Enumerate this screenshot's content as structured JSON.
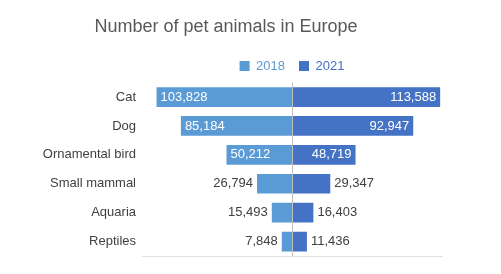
{
  "chart_data": {
    "type": "bar",
    "title": "Number of pet animals in Europe",
    "orientation": "horizontal",
    "categories": [
      "Cat",
      "Dog",
      "Ornamental bird",
      "Small mammal",
      "Aquaria",
      "Reptiles"
    ],
    "series": [
      {
        "name": "2018",
        "color": "#5b9bd5",
        "values": [
          103828,
          85184,
          50212,
          26794,
          15493,
          7848
        ],
        "value_labels": [
          "103,828",
          "85,184",
          "50,212",
          "26,794",
          "15,493",
          "7,848"
        ]
      },
      {
        "name": "2021",
        "color": "#4472c4",
        "values": [
          113588,
          92947,
          48719,
          29347,
          16403,
          11436
        ],
        "value_labels": [
          "113,588",
          "92,947",
          "48,719",
          "29,347",
          "16,403",
          "11,436"
        ]
      }
    ],
    "xlim": [
      0,
      115000
    ],
    "grid": false,
    "legend": "top",
    "data_labels": true,
    "tick_labels": "y"
  }
}
